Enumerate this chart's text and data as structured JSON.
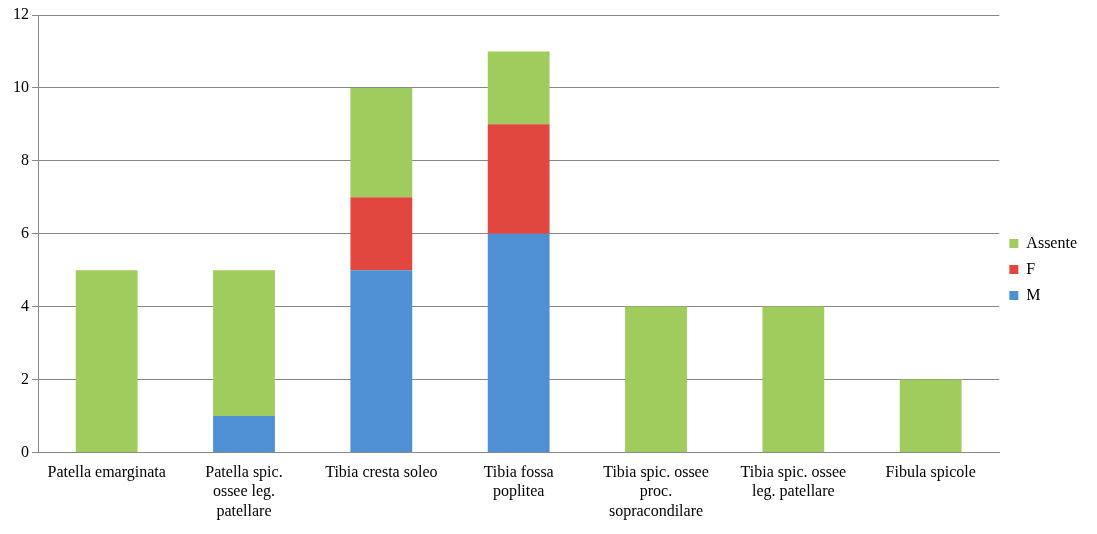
{
  "chart_data": {
    "type": "bar",
    "stacked": true,
    "categories": [
      "Patella emarginata",
      "Patella spic. ossee leg. patellare",
      "Tibia cresta soleo",
      "Tibia fossa poplitea",
      "Tibia spic. ossee proc. sopracondilare",
      "Tibia spic. ossee leg. patellare",
      "Fibula spicole"
    ],
    "series": [
      {
        "name": "M",
        "color": "#4f8fd3",
        "values": [
          0,
          1,
          5,
          6,
          0,
          0,
          0
        ]
      },
      {
        "name": "F",
        "color": "#e2473f",
        "values": [
          0,
          0,
          2,
          3,
          0,
          0,
          0
        ]
      },
      {
        "name": "Assente",
        "color": "#9fcc5c",
        "values": [
          5,
          4,
          3,
          2,
          4,
          4,
          2
        ]
      }
    ],
    "ylim": [
      0,
      12
    ],
    "yticks": [
      0,
      2,
      4,
      6,
      8,
      10,
      12
    ],
    "grid": "y",
    "legend": "right"
  }
}
